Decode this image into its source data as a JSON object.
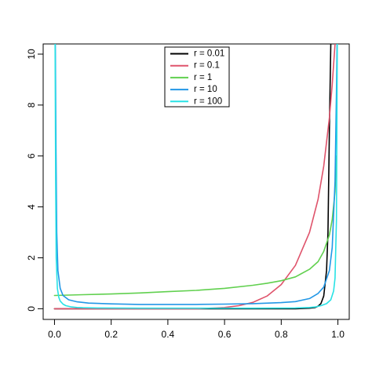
{
  "chart_data": {
    "type": "line",
    "title": "",
    "xlabel": "",
    "ylabel": "",
    "xlim": [
      -0.04,
      1.04
    ],
    "ylim": [
      -0.42,
      10.4
    ],
    "x_ticks": [
      0.0,
      0.2,
      0.4,
      0.6,
      0.8,
      1.0
    ],
    "x_tick_labels": [
      "0.0",
      "0.2",
      "0.4",
      "0.6",
      "0.8",
      "1.0"
    ],
    "y_ticks": [
      0,
      2,
      4,
      6,
      8,
      10
    ],
    "y_tick_labels": [
      "0",
      "2",
      "4",
      "6",
      "8",
      "10"
    ],
    "grid": false,
    "legend_position": "top-center",
    "series": [
      {
        "name": "r = 0.01",
        "color": "#000000",
        "x": [
          0.0,
          0.85,
          0.9,
          0.92,
          0.93,
          0.94,
          0.95,
          0.96,
          0.965,
          0.97,
          0.975
        ],
        "y": [
          0.0,
          0.0,
          0.02,
          0.05,
          0.1,
          0.2,
          0.5,
          1.5,
          3.0,
          7.0,
          10.4
        ]
      },
      {
        "name": "r = 0.1",
        "color": "#DF536B",
        "x": [
          0.0,
          0.5,
          0.55,
          0.6,
          0.65,
          0.7,
          0.75,
          0.8,
          0.85,
          0.9,
          0.93,
          0.95,
          0.97,
          0.98,
          0.99
        ],
        "y": [
          0.0,
          0.0,
          0.02,
          0.05,
          0.12,
          0.25,
          0.5,
          0.95,
          1.7,
          3.0,
          4.3,
          5.6,
          7.5,
          8.8,
          10.4
        ]
      },
      {
        "name": "r = 1",
        "color": "#61D04F",
        "x": [
          0.0,
          0.1,
          0.2,
          0.3,
          0.4,
          0.5,
          0.6,
          0.7,
          0.75,
          0.8,
          0.85,
          0.9,
          0.93,
          0.95,
          0.97,
          0.98,
          0.99,
          0.995
        ],
        "y": [
          0.52,
          0.55,
          0.58,
          0.62,
          0.67,
          0.72,
          0.8,
          0.92,
          1.0,
          1.1,
          1.25,
          1.55,
          1.85,
          2.25,
          2.9,
          3.5,
          4.6,
          6.0
        ]
      },
      {
        "name": "r = 10",
        "color": "#2297E6",
        "x": [
          0.003,
          0.005,
          0.008,
          0.012,
          0.02,
          0.03,
          0.05,
          0.08,
          0.12,
          0.2,
          0.3,
          0.4,
          0.5,
          0.6,
          0.7,
          0.8,
          0.85,
          0.9,
          0.93,
          0.95,
          0.97,
          0.98,
          0.99,
          0.995,
          0.997
        ],
        "y": [
          10.4,
          6.5,
          3.0,
          1.5,
          0.8,
          0.52,
          0.35,
          0.27,
          0.22,
          0.19,
          0.17,
          0.17,
          0.17,
          0.18,
          0.2,
          0.24,
          0.28,
          0.4,
          0.6,
          0.85,
          1.5,
          2.4,
          5.0,
          8.5,
          10.4
        ]
      },
      {
        "name": "r = 100",
        "color": "#28E2E5",
        "x": [
          0.002,
          0.004,
          0.006,
          0.01,
          0.015,
          0.02,
          0.03,
          0.04,
          0.06,
          0.08,
          0.1,
          0.15,
          0.3,
          0.5,
          0.7,
          0.85,
          0.9,
          0.92,
          0.94,
          0.96,
          0.975,
          0.985,
          0.99,
          0.995,
          0.998
        ],
        "y": [
          10.4,
          5.0,
          2.0,
          0.8,
          0.45,
          0.3,
          0.18,
          0.12,
          0.07,
          0.05,
          0.04,
          0.03,
          0.02,
          0.02,
          0.02,
          0.03,
          0.05,
          0.07,
          0.12,
          0.2,
          0.35,
          0.7,
          1.2,
          3.5,
          10.4
        ]
      }
    ]
  }
}
